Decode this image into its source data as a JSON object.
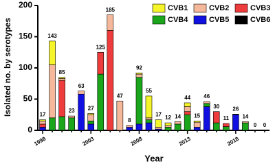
{
  "chart_data": {
    "type": "stacked_bar",
    "y_label": "Isolated no. by serotypes",
    "x_label": "Year",
    "categories": [
      "1998",
      null,
      null,
      null,
      null,
      "2003",
      null,
      null,
      null,
      null,
      "2008",
      null,
      null,
      null,
      null,
      "2013",
      null,
      null,
      null,
      null,
      "2018",
      null,
      null,
      null
    ],
    "series": [
      {
        "name": "CVB5",
        "color": "#1010e0",
        "values": [
          5,
          0,
          0,
          0,
          58,
          10,
          0,
          0,
          0,
          5,
          10,
          12,
          2,
          0,
          0,
          0,
          5,
          38,
          0,
          0,
          25,
          0,
          0,
          0
        ]
      },
      {
        "name": "CVB4",
        "color": "#1aa51a",
        "values": [
          0,
          20,
          22,
          20,
          0,
          5,
          90,
          0,
          0,
          0,
          75,
          5,
          0,
          5,
          10,
          25,
          0,
          5,
          12,
          6,
          0,
          12,
          0,
          0
        ]
      },
      {
        "name": "CVB3",
        "color": "#ee3b3b",
        "values": [
          5,
          0,
          58,
          0,
          0,
          0,
          35,
          160,
          0,
          0,
          0,
          0,
          0,
          0,
          0,
          5,
          0,
          0,
          18,
          5,
          0,
          0,
          0,
          0
        ]
      },
      {
        "name": "CVB2",
        "color": "#f5b89a",
        "values": [
          5,
          85,
          3,
          3,
          5,
          10,
          0,
          25,
          47,
          3,
          5,
          3,
          3,
          3,
          4,
          8,
          8,
          3,
          0,
          0,
          0,
          2,
          0,
          0
        ]
      },
      {
        "name": "CVB1",
        "color": "#f5f52a",
        "values": [
          2,
          38,
          2,
          0,
          0,
          2,
          0,
          0,
          0,
          0,
          2,
          35,
          12,
          4,
          0,
          6,
          2,
          0,
          0,
          0,
          0,
          0,
          0,
          0
        ]
      },
      {
        "name": "CVB6",
        "color": "#000000",
        "values": [
          0,
          0,
          0,
          0,
          0,
          0,
          0,
          0,
          0,
          0,
          0,
          0,
          0,
          0,
          0,
          0,
          0,
          0,
          0,
          0,
          1,
          0,
          0,
          0
        ]
      }
    ],
    "totals": [
      17,
      143,
      85,
      23,
      63,
      27,
      125,
      185,
      47,
      8,
      92,
      55,
      17,
      12,
      14,
      44,
      15,
      46,
      30,
      11,
      26,
      14,
      0,
      0
    ],
    "legend_order": [
      4,
      3,
      2,
      1,
      0,
      5
    ],
    "ylim": [
      0,
      200
    ],
    "yticks": [
      0,
      50,
      100,
      150,
      200
    ],
    "grid": false,
    "legend": "top-right"
  }
}
